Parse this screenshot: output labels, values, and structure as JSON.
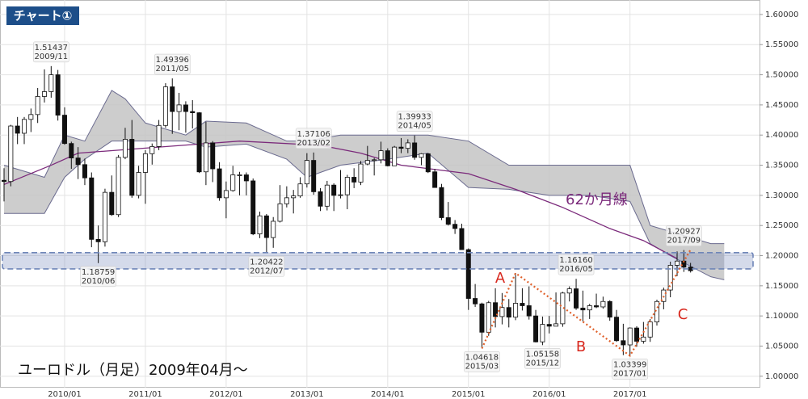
{
  "chart_data": {
    "type": "candlestick",
    "title": "チャート①",
    "subtitle": "ユーロドル（月足）2009年04月～",
    "categories": [
      "2009/04",
      "2009/05",
      "2009/06",
      "2009/07",
      "2009/08",
      "2009/09",
      "2009/10",
      "2009/11",
      "2009/12",
      "2010/01",
      "2010/02",
      "2010/03",
      "2010/04",
      "2010/05",
      "2010/06",
      "2010/07",
      "2010/08",
      "2010/09",
      "2010/10",
      "2010/11",
      "2010/12",
      "2011/01",
      "2011/02",
      "2011/03",
      "2011/04",
      "2011/05",
      "2011/06",
      "2011/07",
      "2011/08",
      "2011/09",
      "2011/10",
      "2011/11",
      "2011/12",
      "2012/01",
      "2012/02",
      "2012/03",
      "2012/04",
      "2012/05",
      "2012/06",
      "2012/07",
      "2012/08",
      "2012/09",
      "2012/10",
      "2012/11",
      "2012/12",
      "2013/01",
      "2013/02",
      "2013/03",
      "2013/04",
      "2013/05",
      "2013/06",
      "2013/07",
      "2013/08",
      "2013/09",
      "2013/10",
      "2013/11",
      "2013/12",
      "2014/01",
      "2014/02",
      "2014/03",
      "2014/04",
      "2014/05",
      "2014/06",
      "2014/07",
      "2014/08",
      "2014/09",
      "2014/10",
      "2014/11",
      "2014/12",
      "2015/01",
      "2015/02",
      "2015/03",
      "2015/04",
      "2015/05",
      "2015/06",
      "2015/07",
      "2015/08",
      "2015/09",
      "2015/10",
      "2015/11",
      "2015/12",
      "2016/01",
      "2016/02",
      "2016/03",
      "2016/04",
      "2016/05",
      "2016/06",
      "2016/07",
      "2016/08",
      "2016/09",
      "2016/10",
      "2016/11",
      "2016/12",
      "2017/01",
      "2017/02",
      "2017/03",
      "2017/04",
      "2017/05",
      "2017/06",
      "2017/07",
      "2017/08",
      "2017/09",
      "2017/10"
    ],
    "open": [
      1.325,
      1.323,
      1.415,
      1.403,
      1.426,
      1.434,
      1.464,
      1.472,
      1.5,
      1.433,
      1.386,
      1.362,
      1.351,
      1.329,
      1.227,
      1.223,
      1.305,
      1.268,
      1.363,
      1.393,
      1.3,
      1.338,
      1.369,
      1.381,
      1.416,
      1.48,
      1.439,
      1.45,
      1.439,
      1.437,
      1.339,
      1.387,
      1.344,
      1.296,
      1.308,
      1.334,
      1.334,
      1.324,
      1.236,
      1.266,
      1.23,
      1.257,
      1.286,
      1.296,
      1.299,
      1.319,
      1.358,
      1.306,
      1.282,
      1.317,
      1.3,
      1.301,
      1.33,
      1.322,
      1.352,
      1.358,
      1.359,
      1.374,
      1.349,
      1.38,
      1.378,
      1.387,
      1.363,
      1.369,
      1.339,
      1.313,
      1.263,
      1.252,
      1.245,
      1.21,
      1.129,
      1.12,
      1.073,
      1.122,
      1.099,
      1.114,
      1.098,
      1.121,
      1.117,
      1.1,
      1.057,
      1.086,
      1.083,
      1.087,
      1.138,
      1.145,
      1.113,
      1.11,
      1.117,
      1.115,
      1.124,
      1.098,
      1.059,
      1.052,
      1.08,
      1.058,
      1.065,
      1.09,
      1.124,
      1.143,
      1.184,
      1.191,
      1.181
    ],
    "high": [
      1.345,
      1.417,
      1.43,
      1.43,
      1.444,
      1.478,
      1.509,
      1.51437,
      1.508,
      1.446,
      1.389,
      1.38,
      1.361,
      1.338,
      1.25,
      1.311,
      1.333,
      1.367,
      1.412,
      1.425,
      1.349,
      1.375,
      1.386,
      1.425,
      1.486,
      1.49396,
      1.47,
      1.456,
      1.458,
      1.438,
      1.422,
      1.39,
      1.355,
      1.323,
      1.349,
      1.339,
      1.338,
      1.328,
      1.273,
      1.269,
      1.264,
      1.317,
      1.315,
      1.309,
      1.33,
      1.37,
      1.37106,
      1.312,
      1.324,
      1.32,
      1.342,
      1.334,
      1.345,
      1.357,
      1.382,
      1.362,
      1.389,
      1.378,
      1.382,
      1.395,
      1.393,
      1.39933,
      1.37,
      1.37,
      1.344,
      1.319,
      1.289,
      1.259,
      1.253,
      1.212,
      1.153,
      1.122,
      1.125,
      1.146,
      1.138,
      1.128,
      1.171,
      1.146,
      1.149,
      1.11,
      1.099,
      1.1,
      1.139,
      1.14,
      1.149,
      1.1616,
      1.142,
      1.12,
      1.137,
      1.132,
      1.126,
      1.11,
      1.087,
      1.081,
      1.083,
      1.09,
      1.095,
      1.127,
      1.147,
      1.19,
      1.207,
      1.20927,
      1.188
    ],
    "low": [
      1.29,
      1.315,
      1.385,
      1.385,
      1.405,
      1.42,
      1.454,
      1.462,
      1.424,
      1.384,
      1.344,
      1.327,
      1.317,
      1.214,
      1.18759,
      1.215,
      1.266,
      1.264,
      1.36,
      1.296,
      1.295,
      1.286,
      1.351,
      1.375,
      1.412,
      1.402,
      1.408,
      1.404,
      1.411,
      1.337,
      1.317,
      1.322,
      1.291,
      1.262,
      1.306,
      1.3,
      1.3,
      1.234,
      1.229,
      1.20422,
      1.213,
      1.255,
      1.28,
      1.27,
      1.296,
      1.313,
      1.301,
      1.274,
      1.275,
      1.274,
      1.295,
      1.277,
      1.312,
      1.317,
      1.35,
      1.333,
      1.353,
      1.348,
      1.349,
      1.37,
      1.37,
      1.359,
      1.35,
      1.337,
      1.313,
      1.259,
      1.25,
      1.236,
      1.21,
      1.11,
      1.115,
      1.04618,
      1.067,
      1.081,
      1.086,
      1.081,
      1.093,
      1.109,
      1.094,
      1.056,
      1.05158,
      1.071,
      1.083,
      1.082,
      1.124,
      1.11,
      1.091,
      1.095,
      1.113,
      1.112,
      1.092,
      1.057,
      1.035,
      1.03399,
      1.049,
      1.054,
      1.057,
      1.084,
      1.111,
      1.131,
      1.166,
      1.173,
      1.172
    ],
    "close": [
      1.323,
      1.415,
      1.403,
      1.426,
      1.434,
      1.464,
      1.472,
      1.5,
      1.433,
      1.386,
      1.362,
      1.351,
      1.329,
      1.227,
      1.223,
      1.305,
      1.268,
      1.363,
      1.393,
      1.3,
      1.338,
      1.369,
      1.381,
      1.416,
      1.48,
      1.439,
      1.45,
      1.439,
      1.437,
      1.339,
      1.387,
      1.344,
      1.296,
      1.308,
      1.334,
      1.334,
      1.324,
      1.236,
      1.266,
      1.23,
      1.257,
      1.286,
      1.296,
      1.299,
      1.319,
      1.358,
      1.306,
      1.282,
      1.317,
      1.3,
      1.301,
      1.33,
      1.322,
      1.352,
      1.358,
      1.359,
      1.374,
      1.349,
      1.38,
      1.378,
      1.387,
      1.363,
      1.369,
      1.339,
      1.313,
      1.263,
      1.252,
      1.245,
      1.21,
      1.129,
      1.12,
      1.073,
      1.122,
      1.099,
      1.114,
      1.098,
      1.121,
      1.117,
      1.1,
      1.057,
      1.086,
      1.083,
      1.087,
      1.138,
      1.145,
      1.113,
      1.11,
      1.117,
      1.115,
      1.124,
      1.098,
      1.059,
      1.052,
      1.08,
      1.058,
      1.065,
      1.09,
      1.124,
      1.143,
      1.184,
      1.191,
      1.181,
      1.175
    ],
    "up_color": "#ffffff",
    "down_color": "#111111",
    "moving_average": {
      "name": "62か月線",
      "color": "#7b2a7b",
      "x": [
        "2009/04",
        "2009/11",
        "2010/03",
        "2011/03",
        "2012/03",
        "2013/03",
        "2013/09",
        "2014/03",
        "2015/01",
        "2015/08",
        "2016/03",
        "2016/10",
        "2017/03",
        "2017/08"
      ],
      "values": [
        1.318,
        1.35,
        1.37,
        1.38,
        1.39,
        1.383,
        1.37,
        1.35,
        1.336,
        1.31,
        1.28,
        1.245,
        1.225,
        1.195
      ]
    },
    "cloud": {
      "color": "#c4c4c4",
      "edge_color": "#6b6b8f",
      "x": [
        "2009/04",
        "2009/10",
        "2010/01",
        "2010/04",
        "2010/08",
        "2010/10",
        "2011/01",
        "2011/07",
        "2011/10",
        "2012/04",
        "2012/10",
        "2013/01",
        "2013/06",
        "2014/01",
        "2014/07",
        "2015/01",
        "2015/07",
        "2016/01",
        "2016/07",
        "2017/01",
        "2017/04",
        "2017/07",
        "2018/01",
        "2018/03"
      ],
      "upper": [
        1.35,
        1.33,
        1.4,
        1.39,
        1.474,
        1.46,
        1.42,
        1.4,
        1.423,
        1.42,
        1.39,
        1.39,
        1.4,
        1.4,
        1.4,
        1.39,
        1.35,
        1.35,
        1.35,
        1.35,
        1.25,
        1.24,
        1.22,
        1.22
      ],
      "lower": [
        1.27,
        1.27,
        1.33,
        1.36,
        1.39,
        1.39,
        1.39,
        1.39,
        1.38,
        1.385,
        1.36,
        1.33,
        1.35,
        1.36,
        1.37,
        1.313,
        1.31,
        1.3,
        1.3,
        1.29,
        1.22,
        1.2,
        1.165,
        1.16
      ]
    },
    "band": {
      "range": [
        1.178,
        1.205
      ],
      "color": "#6f86b8"
    },
    "pattern": {
      "color": "#e0602a",
      "x": [
        "2015/03",
        "2015/08",
        "2017/01",
        "2017/10"
      ],
      "values": [
        1.046,
        1.171,
        1.034,
        1.21
      ],
      "labels": [
        "A",
        "B",
        "C"
      ],
      "label_color": "#d8281e"
    },
    "annotations": [
      {
        "x": "2009/11",
        "value": 1.51437
      },
      {
        "x": "2010/06",
        "value": 1.18759
      },
      {
        "x": "2011/05",
        "value": 1.49396
      },
      {
        "x": "2012/07",
        "value": 1.20422
      },
      {
        "x": "2013/02",
        "value": 1.37106
      },
      {
        "x": "2014/05",
        "value": 1.39933
      },
      {
        "x": "2015/03",
        "value": 1.04618
      },
      {
        "x": "2015/12",
        "value": 1.05158
      },
      {
        "x": "2016/05",
        "value": 1.1616,
        "label": "1.16160"
      },
      {
        "x": "2017/01",
        "value": 1.03399
      },
      {
        "x": "2017/09",
        "value": 1.20927
      }
    ],
    "ylim": [
      0.981,
      1.624
    ],
    "yticks": [
      {
        "value": 1.0,
        "label": "1.00000"
      },
      {
        "value": 1.05,
        "label": "1.05000"
      },
      {
        "value": 1.1,
        "label": "1.10000"
      },
      {
        "value": 1.15,
        "label": "1.15000"
      },
      {
        "value": 1.2,
        "label": "1.20000"
      },
      {
        "value": 1.25,
        "label": "1.25000"
      },
      {
        "value": 1.3,
        "label": "1.30000"
      },
      {
        "value": 1.35,
        "label": "1.35000"
      },
      {
        "value": 1.4,
        "label": "1.40000"
      },
      {
        "value": 1.45,
        "label": "1.45000"
      },
      {
        "value": 1.5,
        "label": "1.50000"
      },
      {
        "value": 1.55,
        "label": "1.55000"
      },
      {
        "value": 1.6,
        "label": "1.60000"
      }
    ],
    "xticks": [
      "2010/01",
      "2011/01",
      "2012/01",
      "2013/01",
      "2014/01",
      "2015/01",
      "2016/01",
      "2017/01"
    ],
    "grid": true
  }
}
